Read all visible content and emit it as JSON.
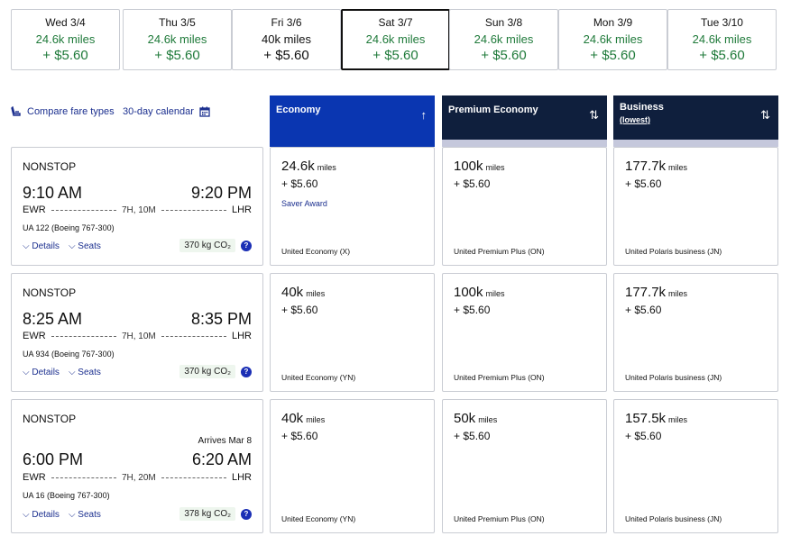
{
  "dates": [
    {
      "label": "Wed 3/4",
      "miles": "24.6k miles",
      "fee": "+ $5.60",
      "selected": false,
      "plain": false
    },
    {
      "label": "Thu 3/5",
      "miles": "24.6k miles",
      "fee": "+ $5.60",
      "selected": false,
      "plain": false
    },
    {
      "label": "Fri 3/6",
      "miles": "40k miles",
      "fee": "+ $5.60",
      "selected": false,
      "plain": true
    },
    {
      "label": "Sat 3/7",
      "miles": "24.6k miles",
      "fee": "+ $5.60",
      "selected": true,
      "plain": false
    },
    {
      "label": "Sun 3/8",
      "miles": "24.6k miles",
      "fee": "+ $5.60",
      "selected": false,
      "plain": false
    },
    {
      "label": "Mon 3/9",
      "miles": "24.6k miles",
      "fee": "+ $5.60",
      "selected": false,
      "plain": false
    },
    {
      "label": "Tue 3/10",
      "miles": "24.6k miles",
      "fee": "+ $5.60",
      "selected": false,
      "plain": false
    }
  ],
  "links": {
    "compare": "Compare fare types",
    "calendar": "30-day calendar"
  },
  "columns": {
    "economy": {
      "title": "Economy",
      "sort": "↑"
    },
    "premium": {
      "title": "Premium Economy",
      "sort": "⇅"
    },
    "business": {
      "title": "Business",
      "sub": "(lowest)",
      "sort": "⇅"
    }
  },
  "colors": {
    "economy_header": "#0a36b1",
    "dark_header": "#0f1f3d",
    "green": "#1f7a3a",
    "link": "#1b2f8f"
  },
  "flights": [
    {
      "stops": "NONSTOP",
      "arrives": "",
      "dep_time": "9:10 AM",
      "arr_time": "9:20 PM",
      "origin": "EWR",
      "dest": "LHR",
      "duration": "7H, 10M",
      "flight_no": "UA 122 (Boeing 767-300)",
      "details": "Details",
      "seats": "Seats",
      "co2": "370 kg CO₂",
      "fares": [
        {
          "miles": "24.6k",
          "unit": "miles",
          "fee": "+ $5.60",
          "saver": "Saver Award",
          "cabin": "United Economy (X)"
        },
        {
          "miles": "100k",
          "unit": "miles",
          "fee": "+ $5.60",
          "saver": "",
          "cabin": "United Premium Plus (ON)"
        },
        {
          "miles": "177.7k",
          "unit": "miles",
          "fee": "+ $5.60",
          "saver": "",
          "cabin": "United Polaris business (JN)"
        }
      ]
    },
    {
      "stops": "NONSTOP",
      "arrives": "",
      "dep_time": "8:25 AM",
      "arr_time": "8:35 PM",
      "origin": "EWR",
      "dest": "LHR",
      "duration": "7H, 10M",
      "flight_no": "UA 934 (Boeing 767-300)",
      "details": "Details",
      "seats": "Seats",
      "co2": "370 kg CO₂",
      "fares": [
        {
          "miles": "40k",
          "unit": "miles",
          "fee": "+ $5.60",
          "saver": "",
          "cabin": "United Economy (YN)"
        },
        {
          "miles": "100k",
          "unit": "miles",
          "fee": "+ $5.60",
          "saver": "",
          "cabin": "United Premium Plus (ON)"
        },
        {
          "miles": "177.7k",
          "unit": "miles",
          "fee": "+ $5.60",
          "saver": "",
          "cabin": "United Polaris business (JN)"
        }
      ]
    },
    {
      "stops": "NONSTOP",
      "arrives": "Arrives Mar 8",
      "dep_time": "6:00 PM",
      "arr_time": "6:20 AM",
      "origin": "EWR",
      "dest": "LHR",
      "duration": "7H, 20M",
      "flight_no": "UA 16 (Boeing 767-300)",
      "details": "Details",
      "seats": "Seats",
      "co2": "378 kg CO₂",
      "fares": [
        {
          "miles": "40k",
          "unit": "miles",
          "fee": "+ $5.60",
          "saver": "",
          "cabin": "United Economy (YN)"
        },
        {
          "miles": "50k",
          "unit": "miles",
          "fee": "+ $5.60",
          "saver": "",
          "cabin": "United Premium Plus (ON)"
        },
        {
          "miles": "157.5k",
          "unit": "miles",
          "fee": "+ $5.60",
          "saver": "",
          "cabin": "United Polaris business (JN)"
        }
      ]
    }
  ]
}
